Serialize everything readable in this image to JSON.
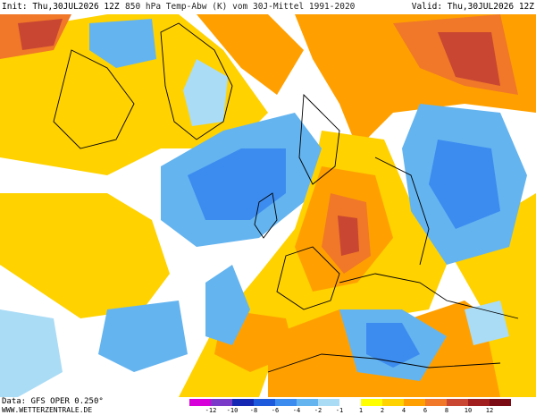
{
  "header": {
    "init_label": "Init: Thu,30JUL2026 12Z",
    "title": "850 hPa Temp-Abw (K) vom 30J-Mittel 1991-2020",
    "valid_label": "Valid: Thu,30JUL2026 12Z"
  },
  "footer": {
    "data_source": "Data: GFS OPER 0.250°",
    "website": "WWW.WETTERZENTRALE.DE"
  },
  "legend": {
    "labels": [
      "-12",
      "-10",
      "-8",
      "-6",
      "-4",
      "-2",
      "-1",
      "1",
      "2",
      "4",
      "6",
      "8",
      "10",
      "12"
    ],
    "colors": [
      "#d800d8",
      "#7a3cc8",
      "#1428b4",
      "#1e5adc",
      "#3c8cf0",
      "#64b4f0",
      "#aadcf6",
      "#ffffff",
      "#ffff00",
      "#ffd200",
      "#ffa000",
      "#f07828",
      "#c84632",
      "#a01e1e",
      "#7a0a14"
    ]
  },
  "colors": {
    "ocean_base": "#ffffff",
    "warm_light": "#ffff00",
    "warm_mid": "#ffd200",
    "warm_orange": "#ffa000",
    "warm_dark": "#f07828",
    "warm_red": "#c84632",
    "hot": "#a01e1e",
    "cool_light": "#aadcf6",
    "cool_mid": "#64b4f0",
    "cool_blue": "#3c8cf0",
    "cool_dark": "#1e5adc"
  }
}
